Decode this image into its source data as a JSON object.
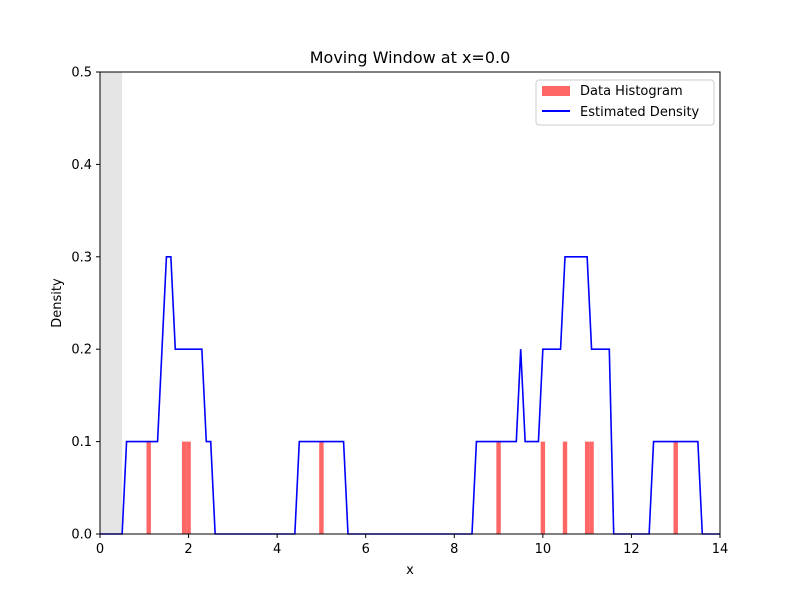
{
  "chart_data": {
    "type": "bar+line",
    "title": "Moving Window at x=0.0",
    "xlabel": "x",
    "ylabel": "Density",
    "xlim": [
      0,
      14
    ],
    "ylim": [
      0,
      0.5
    ],
    "xticks": [
      "0",
      "2",
      "4",
      "6",
      "8",
      "10",
      "12",
      "14"
    ],
    "yticks": [
      "0.0",
      "0.1",
      "0.2",
      "0.3",
      "0.4",
      "0.5"
    ],
    "window": {
      "x0": 0.0,
      "x1": 0.5,
      "color": "#e5e5e5"
    },
    "histogram": {
      "name": "Data Histogram",
      "color": "#ff6666",
      "bin_width": 0.1,
      "bins": [
        {
          "x": 1.1,
          "value": 0.1
        },
        {
          "x": 1.9,
          "value": 0.1
        },
        {
          "x": 2.0,
          "value": 0.1
        },
        {
          "x": 5.0,
          "value": 0.1
        },
        {
          "x": 9.0,
          "value": 0.1
        },
        {
          "x": 10.0,
          "value": 0.1
        },
        {
          "x": 10.5,
          "value": 0.1
        },
        {
          "x": 11.0,
          "value": 0.1
        },
        {
          "x": 11.1,
          "value": 0.1
        },
        {
          "x": 13.0,
          "value": 0.1
        }
      ]
    },
    "density": {
      "name": "Estimated Density",
      "color": "#0000ff",
      "x": [
        0,
        0.5,
        0.6,
        1.3,
        1.5,
        1.6,
        1.7,
        2.3,
        2.4,
        2.5,
        2.6,
        4.4,
        4.5,
        5.5,
        5.6,
        8.4,
        8.5,
        9.4,
        9.5,
        9.6,
        9.9,
        10.0,
        10.4,
        10.5,
        10.6,
        11.0,
        11.1,
        11.5,
        11.6,
        12.4,
        12.5,
        13.5,
        13.6,
        14.0
      ],
      "y": [
        0,
        0,
        0.1,
        0.1,
        0.3,
        0.3,
        0.2,
        0.2,
        0.1,
        0.1,
        0,
        0,
        0.1,
        0.1,
        0,
        0,
        0.1,
        0.1,
        0.2,
        0.1,
        0.1,
        0.2,
        0.2,
        0.3,
        0.3,
        0.3,
        0.2,
        0.2,
        0,
        0,
        0.1,
        0.1,
        0,
        0
      ]
    },
    "legend": {
      "placement": "top-right",
      "entries": [
        "Data Histogram",
        "Estimated Density"
      ]
    },
    "grid": false
  }
}
